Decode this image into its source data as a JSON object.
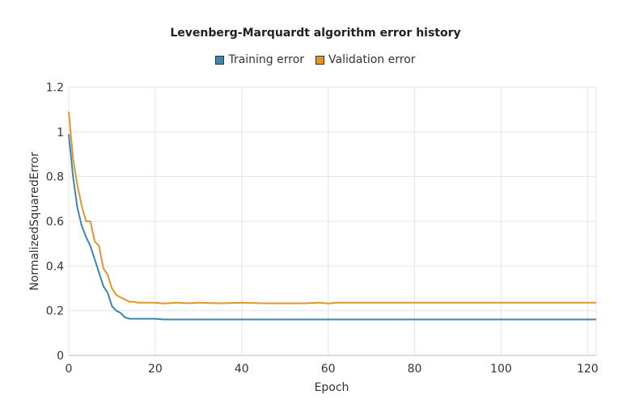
{
  "chart_data": {
    "type": "line",
    "title": "Levenberg-Marquardt algorithm error history",
    "xlabel": "Epoch",
    "ylabel": "NormalizedSquaredError",
    "xlim": [
      0,
      122
    ],
    "ylim": [
      0,
      1.2
    ],
    "x_ticks": [
      "0",
      "20",
      "40",
      "60",
      "80",
      "100",
      "120"
    ],
    "y_ticks": [
      "0",
      "0.2",
      "0.4",
      "0.6",
      "0.8",
      "1",
      "1.2"
    ],
    "grid": true,
    "legend_position": "top-center",
    "series": [
      {
        "name": "Training error",
        "color": "#3d86b0",
        "x": [
          0,
          1,
          2,
          3,
          4,
          5,
          6,
          7,
          8,
          9,
          10,
          11,
          12,
          13,
          14,
          15,
          20,
          22,
          30,
          40,
          50,
          60,
          70,
          80,
          90,
          100,
          110,
          122
        ],
        "y": [
          0.99,
          0.8,
          0.66,
          0.58,
          0.53,
          0.49,
          0.43,
          0.37,
          0.31,
          0.28,
          0.22,
          0.2,
          0.19,
          0.17,
          0.164,
          0.164,
          0.164,
          0.161,
          0.161,
          0.161,
          0.161,
          0.161,
          0.161,
          0.161,
          0.161,
          0.161,
          0.161,
          0.161
        ]
      },
      {
        "name": "Validation error",
        "color": "#e0962e",
        "x": [
          0,
          1,
          2,
          3,
          4,
          5,
          6,
          7,
          8,
          9,
          10,
          11,
          12,
          13,
          14,
          15,
          16,
          20,
          22,
          25,
          28,
          30,
          35,
          40,
          45,
          50,
          55,
          58,
          60,
          62,
          65,
          70,
          80,
          90,
          100,
          110,
          122
        ],
        "y": [
          1.09,
          0.88,
          0.76,
          0.67,
          0.6,
          0.6,
          0.51,
          0.49,
          0.39,
          0.36,
          0.3,
          0.27,
          0.26,
          0.25,
          0.24,
          0.24,
          0.236,
          0.236,
          0.232,
          0.236,
          0.233,
          0.236,
          0.233,
          0.236,
          0.233,
          0.233,
          0.233,
          0.236,
          0.232,
          0.236,
          0.236,
          0.236,
          0.236,
          0.236,
          0.236,
          0.236,
          0.236
        ]
      }
    ]
  }
}
